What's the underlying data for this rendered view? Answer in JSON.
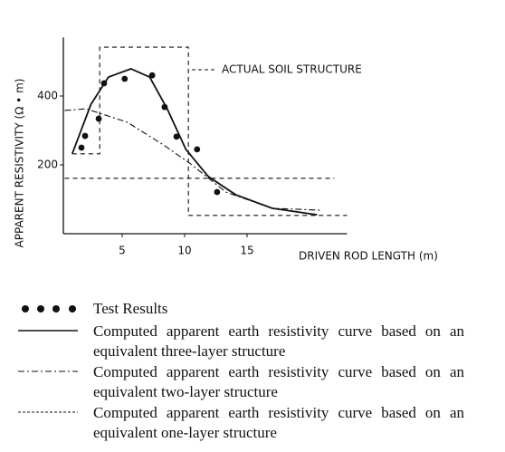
{
  "chart_data": {
    "type": "line",
    "y_label": "APPARENT RESISTIVITY (Ω • m)",
    "x_label": "DRIVEN ROD LENGTH (m)",
    "xlim": [
      0,
      23
    ],
    "ylim": [
      0,
      570
    ],
    "xticks": [
      5,
      10,
      15
    ],
    "yticks": [
      200,
      400
    ],
    "series": [
      {
        "name": "Test Results",
        "style": "markers",
        "color": "#111111",
        "x": [
          1.74,
          2.03,
          3.12,
          3.55,
          5.2,
          7.4,
          8.4,
          9.35,
          11.0,
          12.6
        ],
        "values": [
          250,
          284,
          334,
          437,
          450,
          460,
          368,
          282,
          245,
          121
        ]
      },
      {
        "name": "Computed apparent earth resistivity curve based on an equivalent three-layer structure",
        "style": "solid",
        "color": "#111111",
        "x": [
          1.0,
          2.5,
          3.9,
          5.7,
          7.2,
          8.6,
          10.1,
          11.9,
          14.1,
          17.0,
          20.6
        ],
        "values": [
          232,
          376,
          455,
          479,
          455,
          363,
          245,
          166,
          113,
          74,
          55
        ]
      },
      {
        "name": "Computed apparent earth resistivity curve based on an equivalent two-layer structure",
        "style": "dashdot",
        "color": "#111111",
        "x": [
          0.4,
          2.1,
          5.4,
          8.3,
          10.4,
          13.3,
          17.0,
          21.0
        ],
        "values": [
          358,
          363,
          324,
          258,
          205,
          121,
          74,
          68
        ]
      },
      {
        "name": "Computed apparent earth resistivity curve based on an equivalent one-layer structure",
        "style": "dashed",
        "color": "#111111",
        "x": [
          0.4,
          22.0
        ],
        "values": [
          161,
          161
        ]
      }
    ],
    "annotation": {
      "text": "ACTUAL SOIL STRUCTURE",
      "style": "dashed",
      "color": "#111111",
      "x": [
        1.0,
        3.2,
        3.2,
        10.3,
        10.3,
        23.0
      ],
      "values": [
        232,
        232,
        542,
        542,
        53,
        53
      ]
    }
  }
}
